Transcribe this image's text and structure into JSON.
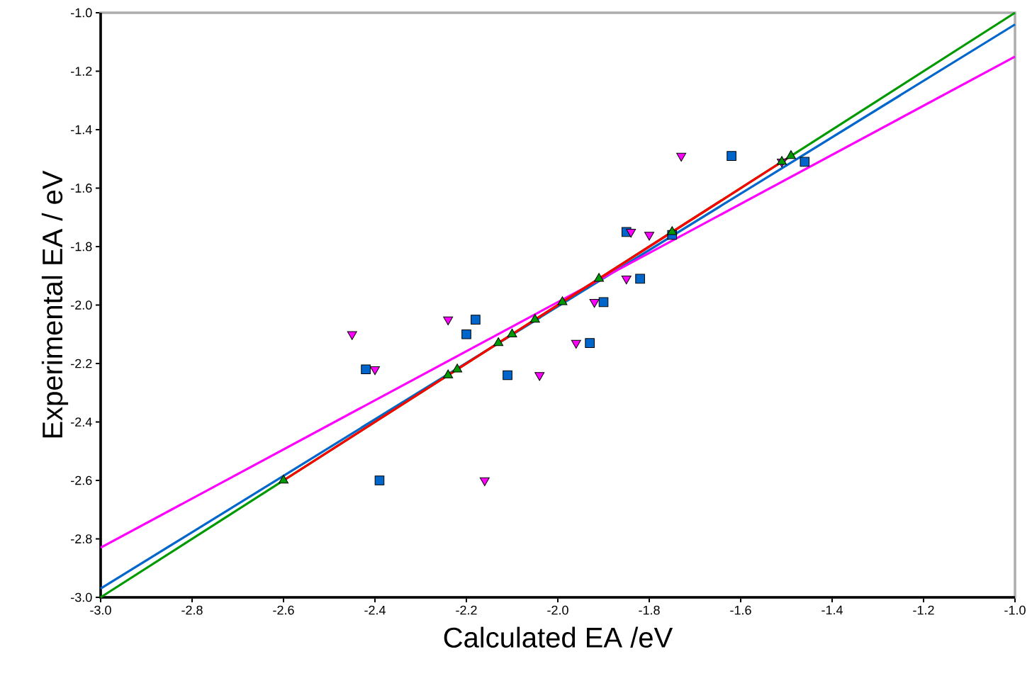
{
  "chart_data": {
    "type": "scatter",
    "xlabel": "Calculated EA /eV",
    "ylabel": "Experimental EA / eV",
    "xlim": [
      -3.0,
      -1.0
    ],
    "ylim": [
      -3.0,
      -1.0
    ],
    "xticks": [
      {
        "value": -3.0,
        "label": "-3.0"
      },
      {
        "value": -2.8,
        "label": "-2.8"
      },
      {
        "value": -2.6,
        "label": "-2.6"
      },
      {
        "value": -2.4,
        "label": "-2.4"
      },
      {
        "value": -2.2,
        "label": "-2.2"
      },
      {
        "value": -2.0,
        "label": "-2.0"
      },
      {
        "value": -1.8,
        "label": "-1.8"
      },
      {
        "value": -1.6,
        "label": "-1.6"
      },
      {
        "value": -1.4,
        "label": "-1.4"
      },
      {
        "value": -1.2,
        "label": "-1.2"
      },
      {
        "value": -1.0,
        "label": "-1.0"
      }
    ],
    "yticks": [
      {
        "value": -3.0,
        "label": "-3.0"
      },
      {
        "value": -2.8,
        "label": "-2.8"
      },
      {
        "value": -2.6,
        "label": "-2.6"
      },
      {
        "value": -2.4,
        "label": "-2.4"
      },
      {
        "value": -2.2,
        "label": "-2.2"
      },
      {
        "value": -2.0,
        "label": "-2.0"
      },
      {
        "value": -1.8,
        "label": "-1.8"
      },
      {
        "value": -1.6,
        "label": "-1.6"
      },
      {
        "value": -1.4,
        "label": "-1.4"
      },
      {
        "value": -1.2,
        "label": "-1.2"
      },
      {
        "value": -1.0,
        "label": "-1.0"
      }
    ],
    "grid": false,
    "series": [
      {
        "color": "#0066cc",
        "marker": "square",
        "x": [
          -2.42,
          -2.39,
          -2.2,
          -2.18,
          -2.11,
          -1.93,
          -1.9,
          -1.85,
          -1.82,
          -1.75,
          -1.62,
          -1.46
        ],
        "values": [
          -2.22,
          -2.6,
          -2.1,
          -2.05,
          -2.24,
          -2.13,
          -1.99,
          -1.75,
          -1.91,
          -1.76,
          -1.49,
          -1.51
        ]
      },
      {
        "color": "#ff00ff",
        "marker": "triangle down",
        "x": [
          -2.45,
          -2.4,
          -2.24,
          -2.16,
          -2.04,
          -1.96,
          -1.92,
          -1.85,
          -1.84,
          -1.8,
          -1.73,
          -1.51
        ],
        "values": [
          -2.1,
          -2.22,
          -2.05,
          -2.6,
          -2.24,
          -2.13,
          -1.99,
          -1.91,
          -1.75,
          -1.76,
          -1.49,
          -1.51
        ]
      },
      {
        "color": "#009900",
        "marker": "triangle",
        "x": [
          -2.6,
          -2.24,
          -2.22,
          -2.13,
          -2.1,
          -2.05,
          -1.99,
          -1.91,
          -1.75,
          -1.51,
          -1.49
        ],
        "values": [
          -2.6,
          -2.24,
          -2.22,
          -2.13,
          -2.1,
          -2.05,
          -1.99,
          -1.91,
          -1.75,
          -1.51,
          -1.49
        ]
      },
      {
        "type": "line",
        "color": "#0066cc",
        "marker": "none",
        "line_style": "solid",
        "x": [
          -3.0,
          -1.0
        ],
        "values": [
          -2.97,
          -1.04
        ]
      },
      {
        "type": "line",
        "color": "#ff00ff",
        "marker": "none",
        "line_style": "solid",
        "x": [
          -3.0,
          -1.0
        ],
        "values": [
          -2.83,
          -1.15
        ]
      },
      {
        "type": "line",
        "color": "#009900",
        "marker": "none",
        "line_style": "solid",
        "x": [
          -3.0,
          -1.0
        ],
        "values": [
          -3.0,
          -1.0
        ]
      },
      {
        "type": "line",
        "color": "#ff0000",
        "marker": "none",
        "line_style": "solid",
        "x": [
          -2.6,
          -1.5
        ],
        "values": [
          -2.6,
          -1.5
        ]
      }
    ]
  }
}
